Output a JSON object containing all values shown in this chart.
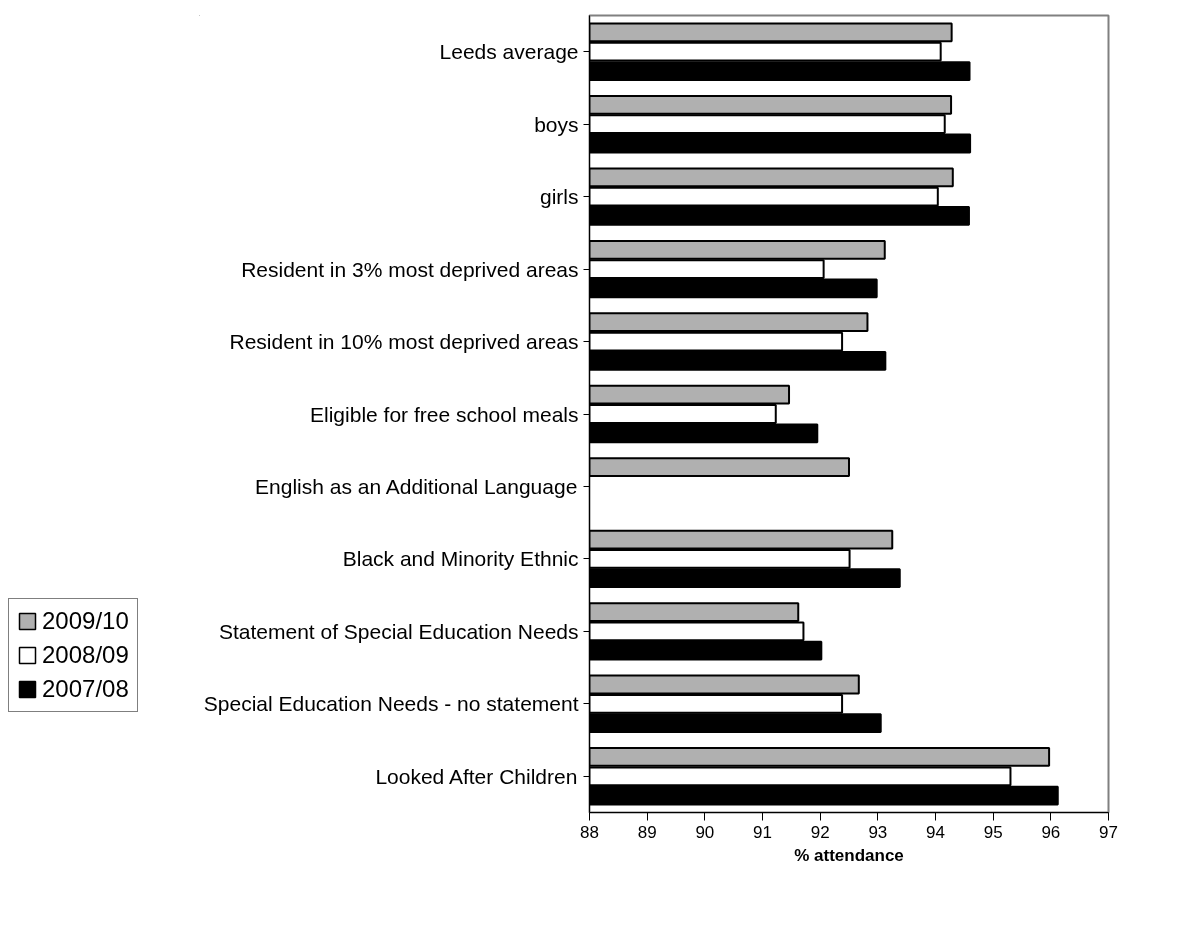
{
  "chart_data": {
    "type": "bar",
    "orientation": "horizontal",
    "xlabel": "% attendance",
    "categories": [
      "Leeds average",
      "boys",
      "girls",
      "Resident in 3% most deprived areas",
      "Resident in 10% most deprived areas",
      "Eligible for free school meals",
      "English as an Additional Language",
      "Black and Minority Ethnic",
      "Statement of Special Education Needs",
      "Special Education Needs - no statement",
      "Looked After Children"
    ],
    "series": [
      {
        "name": "2009/10",
        "color": "#b0b0b0",
        "values": [
          94.28,
          94.27,
          94.3,
          93.12,
          92.82,
          91.46,
          92.5,
          93.25,
          91.62,
          92.67,
          95.97
        ]
      },
      {
        "name": "2008/09",
        "color": "#ffffff",
        "values": [
          94.09,
          94.16,
          94.04,
          92.06,
          92.38,
          91.23,
          null,
          92.51,
          91.71,
          92.38,
          95.3
        ]
      },
      {
        "name": "2007/08",
        "color": "#000000",
        "values": [
          94.59,
          94.6,
          94.58,
          92.98,
          93.13,
          91.95,
          null,
          93.38,
          92.02,
          93.05,
          96.12
        ]
      }
    ],
    "xlim": [
      88,
      97
    ],
    "xticks": [
      88,
      89,
      90,
      91,
      92,
      93,
      94,
      95,
      96,
      97
    ],
    "grid": false,
    "legend": "bottom left"
  }
}
